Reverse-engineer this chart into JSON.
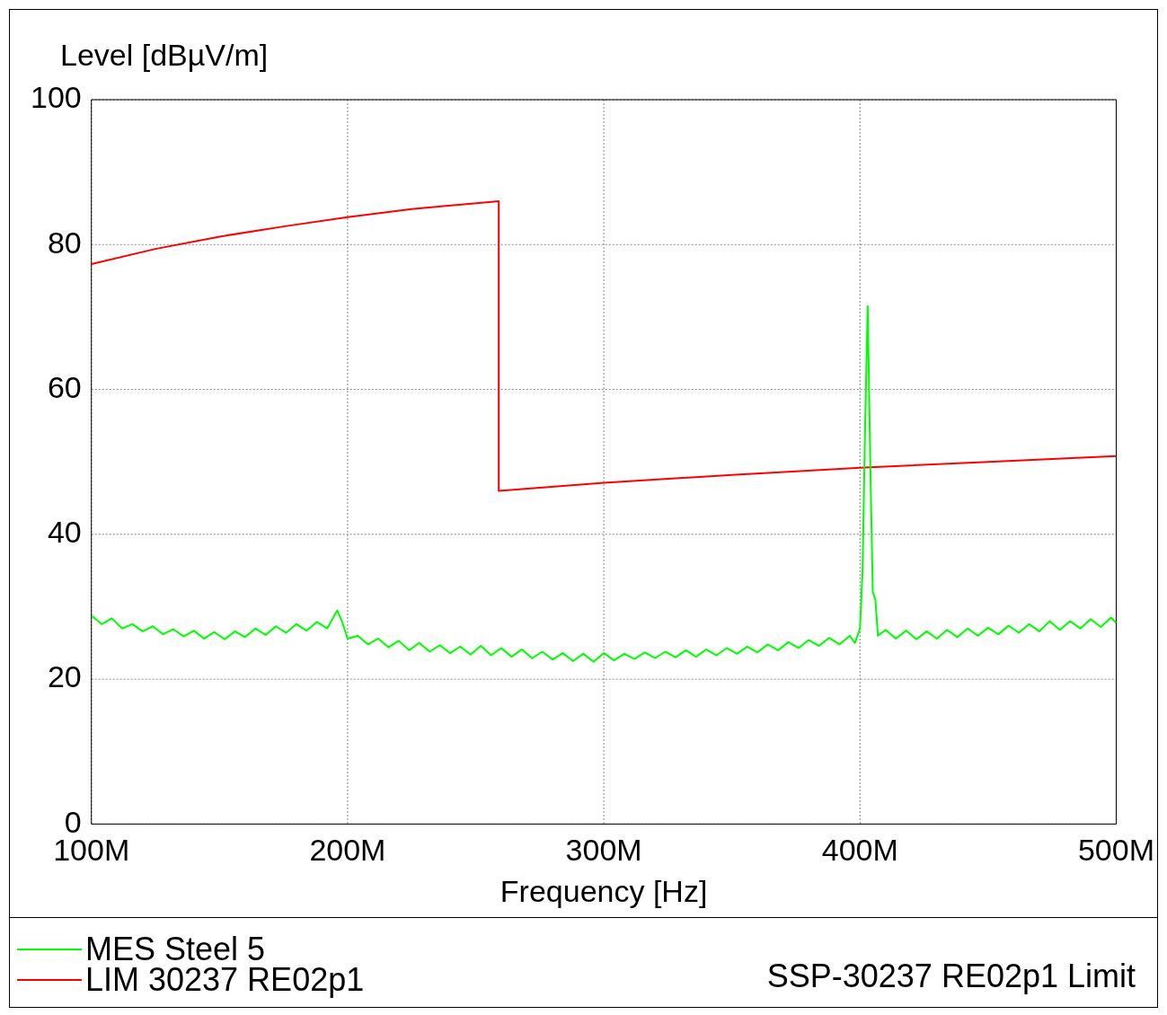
{
  "chart_data": {
    "type": "line",
    "xlabel": "Frequency [Hz]",
    "ylabel": "Level [dBµV/m]",
    "xlim": [
      100000000,
      500000000
    ],
    "ylim": [
      0,
      100
    ],
    "xticks": [
      {
        "value": 100000000,
        "label": "100M"
      },
      {
        "value": 200000000,
        "label": "200M"
      },
      {
        "value": 300000000,
        "label": "300M"
      },
      {
        "value": 400000000,
        "label": "400M"
      },
      {
        "value": 500000000,
        "label": "500M"
      }
    ],
    "yticks": [
      0,
      20,
      40,
      60,
      80,
      100
    ],
    "grid": true,
    "legend": "bottom",
    "marker": "none",
    "line_style": "solid",
    "annotations": [
      "SSP-30237 RE02p1 Limit"
    ],
    "series": [
      {
        "name": "MES Steel 5",
        "color": "#00ff00",
        "x": [
          100000000,
          104000000,
          108000000,
          112000000,
          116000000,
          120000000,
          124000000,
          128000000,
          132000000,
          136000000,
          140000000,
          144000000,
          148000000,
          152000000,
          156000000,
          160000000,
          164000000,
          168000000,
          172000000,
          176000000,
          180000000,
          184000000,
          188000000,
          192000000,
          196000000,
          198000000,
          200000000,
          204000000,
          208000000,
          212000000,
          216000000,
          220000000,
          224000000,
          228000000,
          232000000,
          236000000,
          240000000,
          244000000,
          248000000,
          252000000,
          256000000,
          260000000,
          264000000,
          268000000,
          272000000,
          276000000,
          280000000,
          284000000,
          288000000,
          292000000,
          296000000,
          300000000,
          304000000,
          308000000,
          312000000,
          316000000,
          320000000,
          324000000,
          328000000,
          332000000,
          336000000,
          340000000,
          344000000,
          348000000,
          352000000,
          356000000,
          360000000,
          364000000,
          368000000,
          372000000,
          376000000,
          380000000,
          384000000,
          388000000,
          392000000,
          396000000,
          398000000,
          400000000,
          401000000,
          402000000,
          403000000,
          404000000,
          405000000,
          406000000,
          407000000,
          410000000,
          414000000,
          418000000,
          422000000,
          426000000,
          430000000,
          434000000,
          438000000,
          442000000,
          446000000,
          450000000,
          454000000,
          458000000,
          462000000,
          466000000,
          470000000,
          474000000,
          478000000,
          482000000,
          486000000,
          490000000,
          494000000,
          498000000,
          500000000
        ],
        "values": [
          28.8,
          27.6,
          28.4,
          27.0,
          27.6,
          26.6,
          27.3,
          26.2,
          26.9,
          25.9,
          26.7,
          25.6,
          26.5,
          25.5,
          26.6,
          25.8,
          27.0,
          26.1,
          27.3,
          26.4,
          27.6,
          26.7,
          27.9,
          27.0,
          29.5,
          27.8,
          25.6,
          26.0,
          24.8,
          25.6,
          24.4,
          25.3,
          24.0,
          25.0,
          23.8,
          24.7,
          23.6,
          24.5,
          23.4,
          24.6,
          23.3,
          24.3,
          23.1,
          24.1,
          22.9,
          23.8,
          22.7,
          23.6,
          22.5,
          23.5,
          22.4,
          23.6,
          22.6,
          23.5,
          22.8,
          23.7,
          22.9,
          23.8,
          23.0,
          24.0,
          23.1,
          24.1,
          23.3,
          24.3,
          23.5,
          24.5,
          23.7,
          24.8,
          24.0,
          25.1,
          24.3,
          25.4,
          24.6,
          25.7,
          24.8,
          26.0,
          25.0,
          27.0,
          35,
          55,
          71.5,
          50,
          32,
          31,
          26.0,
          26.8,
          25.6,
          26.7,
          25.5,
          26.6,
          25.6,
          26.8,
          25.8,
          27.0,
          26.0,
          27.1,
          26.2,
          27.4,
          26.4,
          27.6,
          26.6,
          28.0,
          26.8,
          28.0,
          27.0,
          28.3,
          27.2,
          28.5,
          27.8
        ]
      },
      {
        "name": "LIM 30237 RE02p1",
        "color": "#ff0000",
        "x": [
          100000000,
          125000000,
          150000000,
          175000000,
          200000000,
          225000000,
          259000000,
          259000001,
          300000000,
          350000000,
          400000000,
          450000000,
          500000000
        ],
        "values": [
          77.3,
          79.4,
          81.1,
          82.5,
          83.8,
          84.9,
          86.0,
          46.0,
          47.1,
          48.2,
          49.2,
          50.0,
          50.8
        ]
      }
    ]
  }
}
